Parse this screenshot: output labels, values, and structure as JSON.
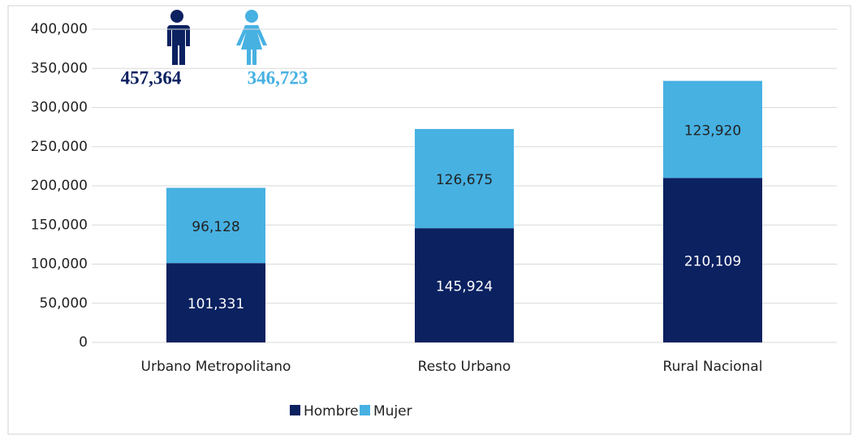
{
  "chart_data": {
    "type": "stacked_bar",
    "categories": [
      "Urbano Metropolitano",
      "Resto Urbano",
      "Rural Nacional"
    ],
    "series": [
      {
        "name": "Hombre",
        "color": "#0b2160",
        "values": [
          101331,
          145924,
          210109
        ],
        "value_labels": [
          "101,331",
          "145,924",
          "210,109"
        ]
      },
      {
        "name": "Mujer",
        "color": "#47b1e2",
        "values": [
          96128,
          126675,
          123920
        ],
        "value_labels": [
          "96,128",
          "126,675",
          "123,920"
        ]
      }
    ],
    "ylim": [
      0,
      400000
    ],
    "yticks": [
      0,
      {
        "value": 50000,
        "label": "50,000"
      },
      {
        "value": 100000,
        "label": "100,000"
      },
      {
        "value": 150000,
        "label": "150,000"
      },
      {
        "value": 200000,
        "label": "200,000"
      },
      {
        "value": 250000,
        "label": "250,000"
      },
      {
        "value": 300000,
        "label": "300,000"
      },
      {
        "value": 350000,
        "label": "350,000"
      },
      {
        "value": 400000,
        "label": "400,000"
      }
    ],
    "grid": true,
    "legend": "bottom",
    "annotations": [
      "457,364",
      "346,723"
    ]
  }
}
